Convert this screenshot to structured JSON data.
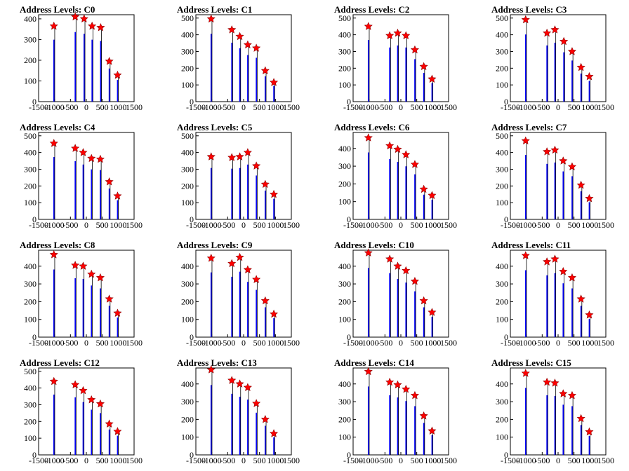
{
  "chart_data": {
    "type": "bar",
    "xlim": [
      -1500,
      1500
    ],
    "xticks": [
      -1500,
      -1000,
      -500,
      0,
      500,
      1000,
      1500
    ],
    "bar_color": "#0000ff",
    "outline_color": "#000000",
    "marker_color": "#ff0000",
    "panels": [
      {
        "title": "Address Levels: C0",
        "ylim": [
          0,
          420
        ],
        "yticks": [
          0,
          100,
          200,
          300,
          400
        ],
        "peaks": [
          {
            "x": -1020,
            "y": 365
          },
          {
            "x": -350,
            "y": 410
          },
          {
            "x": -70,
            "y": 400
          },
          {
            "x": 180,
            "y": 365
          },
          {
            "x": 450,
            "y": 358
          },
          {
            "x": 720,
            "y": 195
          },
          {
            "x": 980,
            "y": 128
          }
        ]
      },
      {
        "title": "Address Levels: C1",
        "ylim": [
          0,
          520
        ],
        "yticks": [
          0,
          100,
          200,
          300,
          400,
          500
        ],
        "peaks": [
          {
            "x": -1020,
            "y": 495
          },
          {
            "x": -370,
            "y": 430
          },
          {
            "x": -120,
            "y": 390
          },
          {
            "x": 130,
            "y": 340
          },
          {
            "x": 400,
            "y": 320
          },
          {
            "x": 680,
            "y": 185
          },
          {
            "x": 950,
            "y": 115
          }
        ]
      },
      {
        "title": "Address Levels: C2",
        "ylim": [
          0,
          520
        ],
        "yticks": [
          0,
          100,
          200,
          300,
          400,
          500
        ],
        "peaks": [
          {
            "x": -1020,
            "y": 450
          },
          {
            "x": -350,
            "y": 395
          },
          {
            "x": -100,
            "y": 410
          },
          {
            "x": 160,
            "y": 395
          },
          {
            "x": 440,
            "y": 310
          },
          {
            "x": 720,
            "y": 210
          },
          {
            "x": 980,
            "y": 135
          }
        ]
      },
      {
        "title": "Address Levels: C3",
        "ylim": [
          0,
          520
        ],
        "yticks": [
          0,
          100,
          200,
          300,
          400,
          500
        ],
        "peaks": [
          {
            "x": -1020,
            "y": 490
          },
          {
            "x": -350,
            "y": 410
          },
          {
            "x": -100,
            "y": 430
          },
          {
            "x": 180,
            "y": 360
          },
          {
            "x": 440,
            "y": 300
          },
          {
            "x": 720,
            "y": 205
          },
          {
            "x": 980,
            "y": 150
          }
        ]
      },
      {
        "title": "Address Levels: C4",
        "ylim": [
          0,
          520
        ],
        "yticks": [
          0,
          100,
          200,
          300,
          400,
          500
        ],
        "peaks": [
          {
            "x": -1020,
            "y": 455
          },
          {
            "x": -350,
            "y": 425
          },
          {
            "x": -100,
            "y": 400
          },
          {
            "x": 160,
            "y": 365
          },
          {
            "x": 440,
            "y": 360
          },
          {
            "x": 720,
            "y": 225
          },
          {
            "x": 980,
            "y": 140
          }
        ]
      },
      {
        "title": "Address Levels: C5",
        "ylim": [
          0,
          520
        ],
        "yticks": [
          0,
          100,
          200,
          300,
          400,
          500
        ],
        "peaks": [
          {
            "x": -1020,
            "y": 375
          },
          {
            "x": -370,
            "y": 370
          },
          {
            "x": -120,
            "y": 375
          },
          {
            "x": 130,
            "y": 400
          },
          {
            "x": 400,
            "y": 320
          },
          {
            "x": 680,
            "y": 210
          },
          {
            "x": 950,
            "y": 150
          }
        ]
      },
      {
        "title": "Address Levels: C6",
        "ylim": [
          0,
          490
        ],
        "yticks": [
          0,
          100,
          200,
          300,
          400
        ],
        "peaks": [
          {
            "x": -1020,
            "y": 460
          },
          {
            "x": -350,
            "y": 415
          },
          {
            "x": -100,
            "y": 395
          },
          {
            "x": 160,
            "y": 365
          },
          {
            "x": 440,
            "y": 310
          },
          {
            "x": 720,
            "y": 170
          },
          {
            "x": 980,
            "y": 135
          }
        ]
      },
      {
        "title": "Address Levels: C7",
        "ylim": [
          0,
          520
        ],
        "yticks": [
          0,
          100,
          200,
          300,
          400,
          500
        ],
        "peaks": [
          {
            "x": -1020,
            "y": 470
          },
          {
            "x": -350,
            "y": 405
          },
          {
            "x": -100,
            "y": 415
          },
          {
            "x": 160,
            "y": 350
          },
          {
            "x": 440,
            "y": 315
          },
          {
            "x": 720,
            "y": 205
          },
          {
            "x": 980,
            "y": 125
          }
        ]
      },
      {
        "title": "Address Levels: C8",
        "ylim": [
          0,
          490
        ],
        "yticks": [
          0,
          100,
          200,
          300,
          400
        ],
        "peaks": [
          {
            "x": -1020,
            "y": 465
          },
          {
            "x": -350,
            "y": 405
          },
          {
            "x": -100,
            "y": 400
          },
          {
            "x": 160,
            "y": 355
          },
          {
            "x": 440,
            "y": 335
          },
          {
            "x": 720,
            "y": 215
          },
          {
            "x": 980,
            "y": 135
          }
        ]
      },
      {
        "title": "Address Levels: C9",
        "ylim": [
          0,
          490
        ],
        "yticks": [
          0,
          100,
          200,
          300,
          400
        ],
        "peaks": [
          {
            "x": -1020,
            "y": 445
          },
          {
            "x": -370,
            "y": 415
          },
          {
            "x": -120,
            "y": 450
          },
          {
            "x": 130,
            "y": 380
          },
          {
            "x": 400,
            "y": 325
          },
          {
            "x": 680,
            "y": 205
          },
          {
            "x": 950,
            "y": 130
          }
        ]
      },
      {
        "title": "Address Levels: C10",
        "ylim": [
          0,
          490
        ],
        "yticks": [
          0,
          100,
          200,
          300,
          400
        ],
        "peaks": [
          {
            "x": -1020,
            "y": 475
          },
          {
            "x": -350,
            "y": 440
          },
          {
            "x": -100,
            "y": 400
          },
          {
            "x": 160,
            "y": 375
          },
          {
            "x": 440,
            "y": 315
          },
          {
            "x": 720,
            "y": 205
          },
          {
            "x": 980,
            "y": 140
          }
        ]
      },
      {
        "title": "Address Levels: C11",
        "ylim": [
          0,
          490
        ],
        "yticks": [
          0,
          100,
          200,
          300,
          400
        ],
        "peaks": [
          {
            "x": -1020,
            "y": 460
          },
          {
            "x": -350,
            "y": 425
          },
          {
            "x": -100,
            "y": 440
          },
          {
            "x": 160,
            "y": 370
          },
          {
            "x": 440,
            "y": 335
          },
          {
            "x": 720,
            "y": 215
          },
          {
            "x": 980,
            "y": 125
          }
        ]
      },
      {
        "title": "Address Levels: C12",
        "ylim": [
          0,
          520
        ],
        "yticks": [
          0,
          100,
          200,
          300,
          400,
          500
        ],
        "peaks": [
          {
            "x": -1020,
            "y": 440
          },
          {
            "x": -350,
            "y": 420
          },
          {
            "x": -100,
            "y": 385
          },
          {
            "x": 160,
            "y": 330
          },
          {
            "x": 440,
            "y": 305
          },
          {
            "x": 720,
            "y": 185
          },
          {
            "x": 980,
            "y": 140
          }
        ]
      },
      {
        "title": "Address Levels: C13",
        "ylim": [
          0,
          490
        ],
        "yticks": [
          0,
          100,
          200,
          300,
          400
        ],
        "peaks": [
          {
            "x": -1020,
            "y": 480
          },
          {
            "x": -370,
            "y": 420
          },
          {
            "x": -120,
            "y": 400
          },
          {
            "x": 130,
            "y": 380
          },
          {
            "x": 400,
            "y": 290
          },
          {
            "x": 680,
            "y": 200
          },
          {
            "x": 950,
            "y": 120
          }
        ]
      },
      {
        "title": "Address Levels: C14",
        "ylim": [
          0,
          490
        ],
        "yticks": [
          0,
          100,
          200,
          300,
          400
        ],
        "peaks": [
          {
            "x": -1020,
            "y": 470
          },
          {
            "x": -350,
            "y": 410
          },
          {
            "x": -100,
            "y": 395
          },
          {
            "x": 160,
            "y": 370
          },
          {
            "x": 440,
            "y": 335
          },
          {
            "x": 720,
            "y": 220
          },
          {
            "x": 980,
            "y": 135
          }
        ]
      },
      {
        "title": "Address Levels: C15",
        "ylim": [
          0,
          490
        ],
        "yticks": [
          0,
          100,
          200,
          300,
          400
        ],
        "peaks": [
          {
            "x": -1020,
            "y": 460
          },
          {
            "x": -350,
            "y": 410
          },
          {
            "x": -100,
            "y": 405
          },
          {
            "x": 160,
            "y": 345
          },
          {
            "x": 440,
            "y": 335
          },
          {
            "x": 720,
            "y": 205
          },
          {
            "x": 980,
            "y": 130
          }
        ]
      }
    ]
  }
}
